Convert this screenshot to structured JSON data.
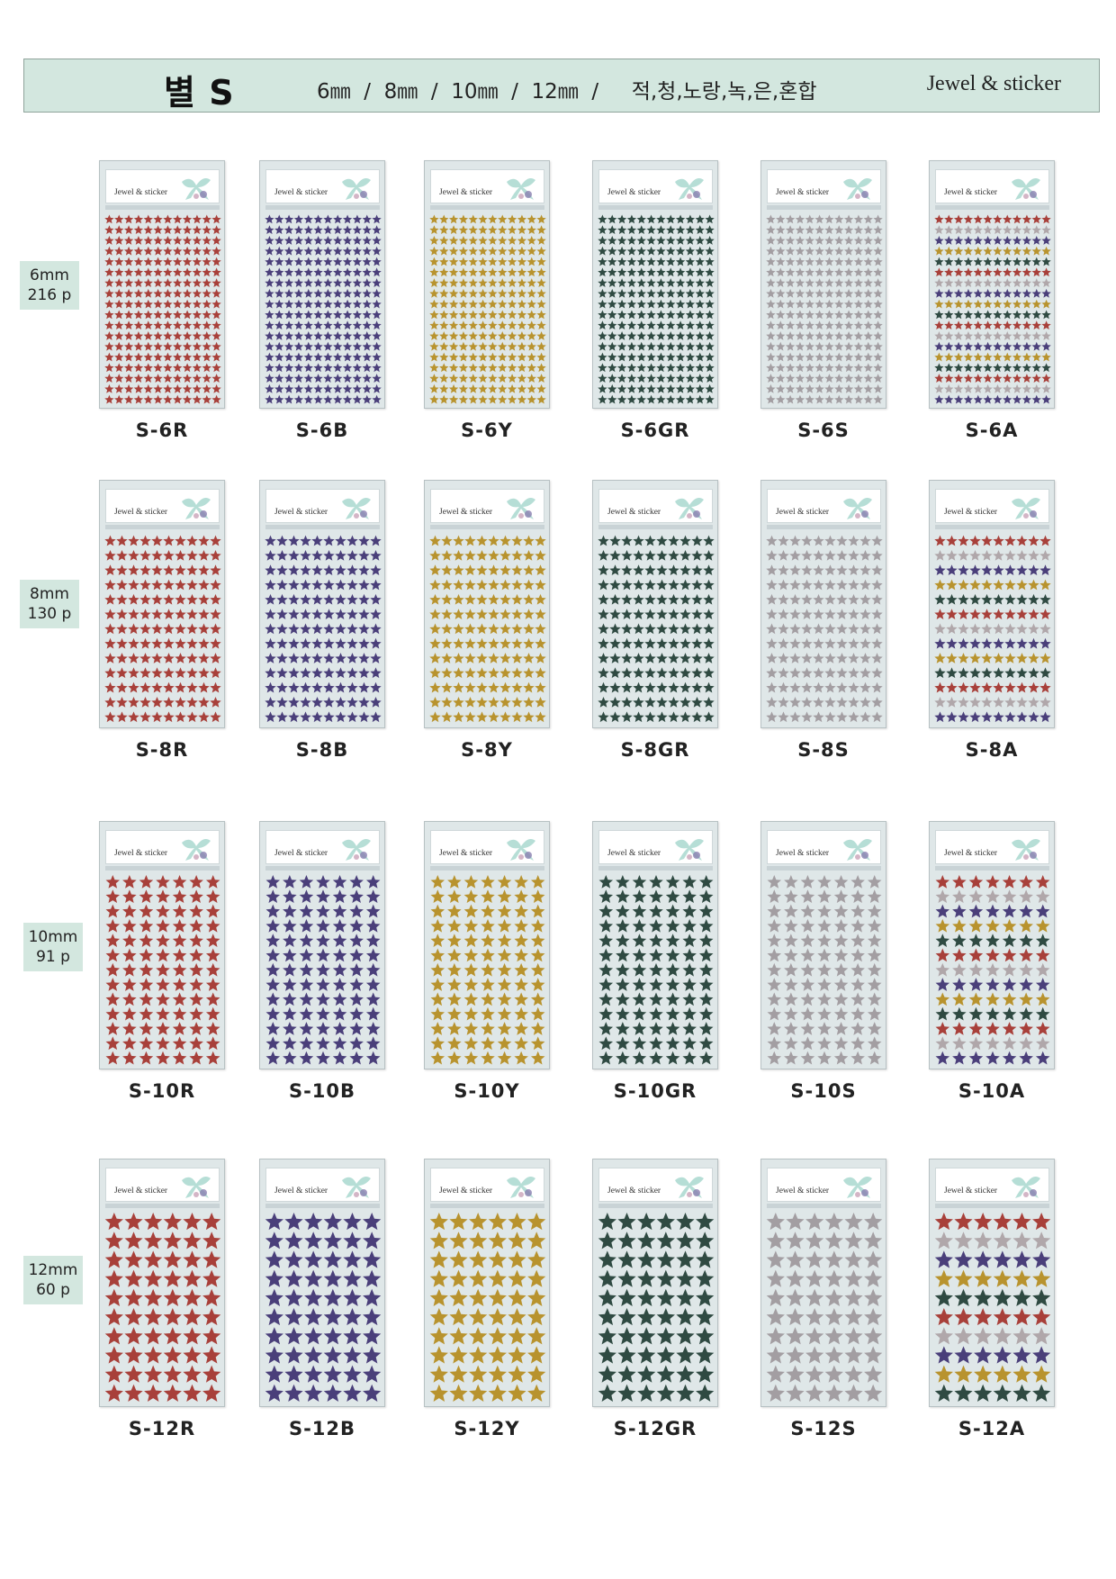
{
  "header": {
    "title": "별 S",
    "sizes": "6㎜  /  8㎜  /  10㎜  /  12㎜  /     적,청,노랑,녹,은,혼합",
    "brand": "Jewel & sticker"
  },
  "colors": {
    "R": "#a8403a",
    "B": "#4a3f7a",
    "Y": "#b8932e",
    "GR": "#2f4a42",
    "S": "#a39ea2",
    "mix": [
      "#a8403a",
      "#b0a7aa",
      "#4a3f7a",
      "#b8932e",
      "#2f4a42"
    ]
  },
  "rows": [
    {
      "label_size": "6mm",
      "label_count": "216 p",
      "grid": {
        "cols": 12,
        "rows": 18
      },
      "sheets": [
        {
          "code": "S-6R",
          "color": "R"
        },
        {
          "code": "S-6B",
          "color": "B"
        },
        {
          "code": "S-6Y",
          "color": "Y"
        },
        {
          "code": "S-6GR",
          "color": "GR"
        },
        {
          "code": "S-6S",
          "color": "S"
        },
        {
          "code": "S-6A",
          "color": "A"
        }
      ]
    },
    {
      "label_size": "8mm",
      "label_count": "130 p",
      "grid": {
        "cols": 10,
        "rows": 13
      },
      "sheets": [
        {
          "code": "S-8R",
          "color": "R"
        },
        {
          "code": "S-8B",
          "color": "B"
        },
        {
          "code": "S-8Y",
          "color": "Y"
        },
        {
          "code": "S-8GR",
          "color": "GR"
        },
        {
          "code": "S-8S",
          "color": "S"
        },
        {
          "code": "S-8A",
          "color": "A"
        }
      ]
    },
    {
      "label_size": "10mm",
      "label_count": "91 p",
      "grid": {
        "cols": 7,
        "rows": 13
      },
      "sheets": [
        {
          "code": "S-10R",
          "color": "R"
        },
        {
          "code": "S-10B",
          "color": "B"
        },
        {
          "code": "S-10Y",
          "color": "Y"
        },
        {
          "code": "S-10GR",
          "color": "GR"
        },
        {
          "code": "S-10S",
          "color": "S"
        },
        {
          "code": "S-10A",
          "color": "A"
        }
      ]
    },
    {
      "label_size": "12mm",
      "label_count": "60 p",
      "grid": {
        "cols": 6,
        "rows": 10
      },
      "sheets": [
        {
          "code": "S-12R",
          "color": "R"
        },
        {
          "code": "S-12B",
          "color": "B"
        },
        {
          "code": "S-12Y",
          "color": "Y"
        },
        {
          "code": "S-12GR",
          "color": "GR"
        },
        {
          "code": "S-12S",
          "color": "S"
        },
        {
          "code": "S-12A",
          "color": "A"
        }
      ]
    }
  ]
}
